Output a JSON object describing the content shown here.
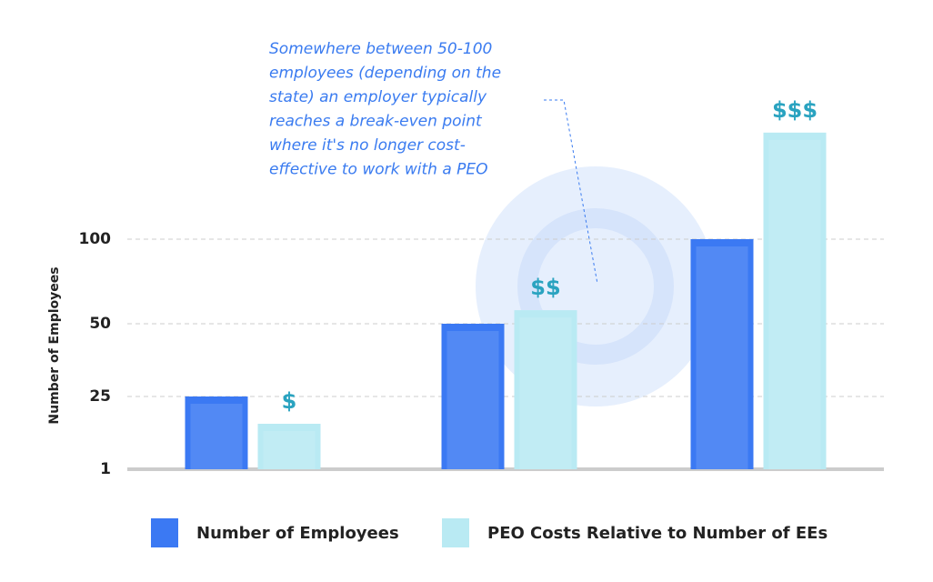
{
  "chart_data": {
    "type": "bar",
    "y_label": "Number of Employees",
    "categories": [
      null,
      null,
      null
    ],
    "series": [
      {
        "name": "Number of Employees",
        "color": "#3b79f3",
        "values": [
          25,
          50,
          100
        ]
      },
      {
        "name": "PEO Costs Relative to Number of EEs",
        "color": "#b9eaf3",
        "values": [
          16,
          58,
          163
        ]
      }
    ],
    "cost_labels": [
      "$",
      "$$",
      "$$$"
    ],
    "annotation": [
      "Somewhere between 50-100",
      "employees (depending on the",
      "state) an employer typically",
      "reaches a break-even point",
      "where it's no longer cost-",
      "effective to work with a PEO"
    ],
    "ylim": [
      1,
      175
    ],
    "yticks": [
      1,
      25,
      50,
      100
    ],
    "grid": true
  }
}
